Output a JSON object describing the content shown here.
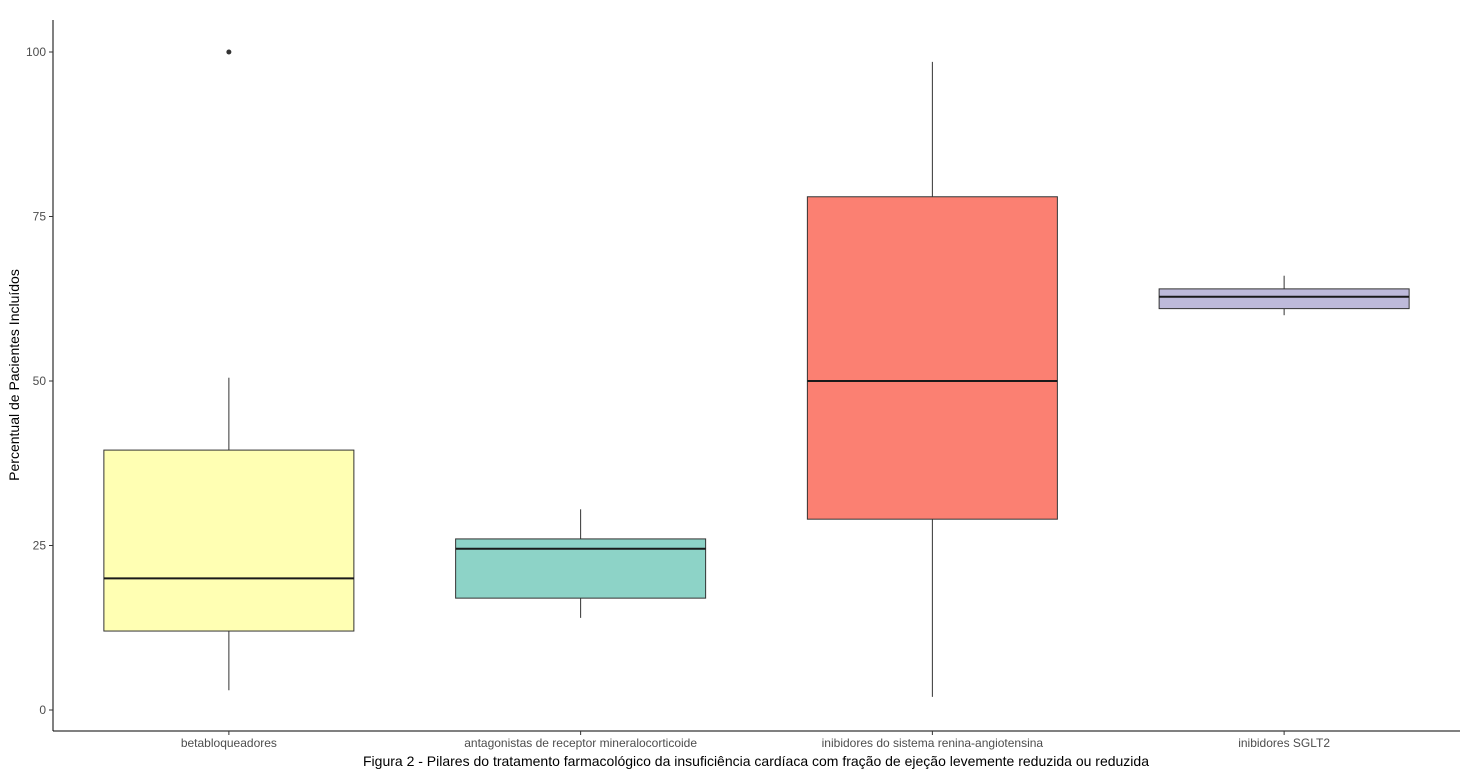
{
  "chart_data": {
    "type": "boxplot",
    "ylabel": "Percentual de Pacientes Incluídos",
    "xlabel": "",
    "caption": "Figura 2 - Pilares do tratamento farmacológico da insuficiência cardíaca com fração de ejeção levemente reduzida ou reduzida",
    "ylim": [
      -3,
      105
    ],
    "yticks": [
      "0",
      "25",
      "50",
      "75",
      "100"
    ],
    "grid": false,
    "legend": "none",
    "categories": [
      "betabloqueadores",
      "antagonistas de receptor mineralocorticoide",
      "inibidores do sistema renina-angiotensina",
      "inibidores SGLT2"
    ],
    "boxes": [
      {
        "category": "betabloqueadores",
        "whisker_low": 3,
        "q1": 12,
        "median": 20,
        "q3": 39.5,
        "whisker_high": 50.5,
        "outliers": [
          100
        ],
        "color": "#FFFFB3"
      },
      {
        "category": "antagonistas de receptor mineralocorticoide",
        "whisker_low": 14,
        "q1": 17,
        "median": 24.5,
        "q3": 26,
        "whisker_high": 30.5,
        "outliers": [],
        "color": "#8DD3C7"
      },
      {
        "category": "inibidores do sistema renina-angiotensina",
        "whisker_low": 2,
        "q1": 29,
        "median": 50,
        "q3": 78,
        "whisker_high": 98.5,
        "outliers": [],
        "color": "#FB8072"
      },
      {
        "category": "inibidores SGLT2",
        "whisker_low": 60,
        "q1": 61,
        "median": 62.8,
        "q3": 64,
        "whisker_high": 66,
        "outliers": [],
        "color": "#BEBADA"
      }
    ]
  }
}
